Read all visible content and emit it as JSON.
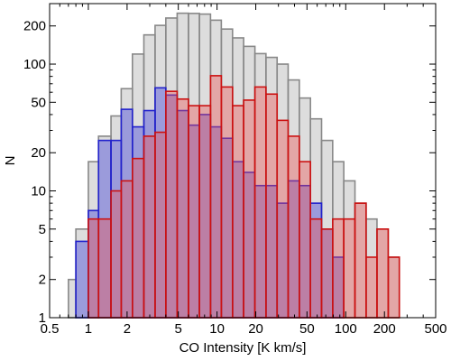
{
  "chart_data": {
    "type": "bar",
    "xlabel": "CO Intensity [K km/s]",
    "ylabel": "N",
    "x_scale": "log",
    "y_scale": "log",
    "xlim": [
      0.5,
      500
    ],
    "ylim": [
      1,
      300
    ],
    "x_ticks": [
      0.5,
      1,
      2,
      5,
      10,
      20,
      50,
      100,
      200,
      500
    ],
    "x_tick_labels": [
      "0.5",
      "1",
      "2",
      "5",
      "10",
      "20",
      "50",
      "100",
      "200",
      "500"
    ],
    "y_ticks": [
      1,
      2,
      5,
      10,
      20,
      50,
      100,
      200
    ],
    "y_tick_labels": [
      "1",
      "2",
      "5",
      "10",
      "20",
      "50",
      "100",
      "200"
    ],
    "grid": false,
    "legend": "none",
    "bin_edges": [
      0.5,
      0.6,
      0.7,
      0.8,
      1.0,
      1.2,
      1.5,
      1.8,
      2.2,
      2.7,
      3.3,
      4.0,
      4.9,
      6.0,
      7.3,
      8.9,
      10.8,
      13.2,
      16.1,
      19.7,
      24.0,
      29.3,
      35.7,
      43.6,
      53.2,
      64.9,
      79.2,
      96.6,
      118,
      144,
      175,
      214,
      261
    ],
    "series": [
      {
        "color": "#aaaaaa",
        "stroke": "#888888",
        "counts": [
          0,
          1,
          2,
          5,
          17,
          27,
          39,
          64,
          120,
          170,
          202,
          231,
          252,
          251,
          248,
          222,
          189,
          161,
          138,
          121,
          113,
          100,
          75,
          54,
          37,
          25,
          17,
          12,
          8,
          6,
          5,
          3
        ]
      },
      {
        "color": "#3a3ad9",
        "stroke": "#2222cc",
        "counts": [
          0,
          0,
          0,
          4,
          7,
          25,
          25,
          44,
          32,
          43,
          65,
          57,
          43,
          33,
          40,
          32,
          26,
          17,
          14,
          11,
          11,
          8,
          12,
          11,
          8,
          5,
          3,
          0,
          0,
          0,
          0,
          0
        ]
      },
      {
        "color": "#ee5555",
        "stroke": "#cc1111",
        "counts": [
          0,
          0,
          0,
          0,
          6,
          6,
          10,
          12,
          18,
          27,
          29,
          61,
          53,
          47,
          47,
          81,
          66,
          47,
          52,
          66,
          58,
          36,
          27,
          17,
          6,
          5,
          6,
          6,
          8,
          3,
          5,
          3
        ]
      }
    ]
  }
}
